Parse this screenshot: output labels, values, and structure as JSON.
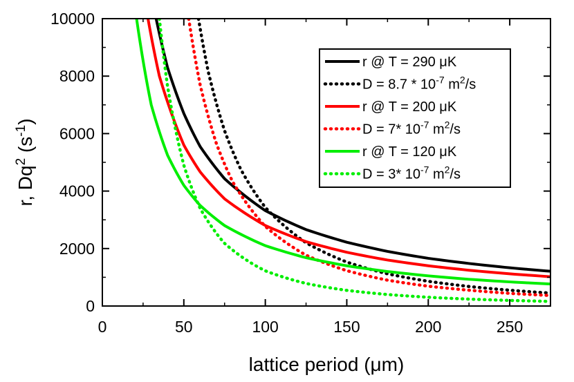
{
  "chart_data": {
    "type": "line",
    "xlabel": "lattice period (μm)",
    "ylabel": "r, Dq² (s⁻¹)",
    "ylabel_parts": {
      "main": "r, Dq",
      "sup1": "2",
      "open": " (s",
      "sup2": "-1",
      "close": ")"
    },
    "xlim": [
      0,
      275
    ],
    "ylim": [
      0,
      10000
    ],
    "xticks": [
      0,
      50,
      100,
      150,
      200,
      250
    ],
    "yticks": [
      0,
      2000,
      4000,
      6000,
      8000,
      10000
    ],
    "xtick_labels": [
      "0",
      "50",
      "100",
      "150",
      "200",
      "250"
    ],
    "ytick_labels": [
      "0",
      "2000",
      "4000",
      "6000",
      "8000",
      "10000"
    ],
    "legend_position": "top-right",
    "grid": false,
    "series": [
      {
        "name": "r @ T = 290 μK",
        "color": "#000000",
        "style": "solid",
        "x": [
          33,
          40,
          50,
          60,
          75,
          100,
          125,
          150,
          175,
          200,
          225,
          250,
          275
        ],
        "y": [
          10000,
          8300,
          6700,
          5550,
          4430,
          3320,
          2660,
          2220,
          1900,
          1660,
          1480,
          1330,
          1210
        ]
      },
      {
        "name": "D = 8.7 * 10⁻⁷ m²/s",
        "legend_parts": {
          "pre": "D = 8.7 * 10",
          "sup": "-7",
          "mid": " m",
          "sup2": "2",
          "post": "/s"
        },
        "color": "#000000",
        "style": "dotted",
        "x": [
          59,
          65,
          75,
          85,
          100,
          125,
          150,
          175,
          200,
          225,
          250,
          275
        ],
        "y": [
          10000,
          8150,
          6100,
          4750,
          3430,
          2200,
          1530,
          1120,
          860,
          680,
          550,
          450
        ]
      },
      {
        "name": "r @ T = 200 μK",
        "color": "#ff0000",
        "style": "solid",
        "x": [
          28,
          35,
          50,
          60,
          75,
          100,
          125,
          150,
          175,
          200,
          225,
          250,
          275
        ],
        "y": [
          10000,
          8000,
          5600,
          4670,
          3730,
          2800,
          2240,
          1870,
          1600,
          1400,
          1245,
          1120,
          1020
        ]
      },
      {
        "name": "D = 7* 10⁻⁷ m²/s",
        "legend_parts": {
          "pre": "D = 7* 10",
          "sup": "-7",
          "mid": " m",
          "sup2": "2",
          "post": "/s"
        },
        "color": "#ff0000",
        "style": "dotted",
        "x": [
          53,
          60,
          70,
          80,
          100,
          125,
          150,
          175,
          200,
          225,
          250,
          275
        ],
        "y": [
          10000,
          7700,
          5650,
          4320,
          2770,
          1770,
          1230,
          900,
          690,
          550,
          440,
          365
        ]
      },
      {
        "name": "r @ T = 120 μK",
        "color": "#00ee00",
        "style": "solid",
        "x": [
          21,
          30,
          40,
          50,
          60,
          75,
          100,
          125,
          150,
          175,
          200,
          225,
          250,
          275
        ],
        "y": [
          10000,
          7000,
          5250,
          4200,
          3500,
          2800,
          2100,
          1680,
          1400,
          1200,
          1050,
          930,
          840,
          765
        ]
      },
      {
        "name": "D = 3* 10⁻⁷ m²/s",
        "legend_parts": {
          "pre": "D = 3* 10",
          "sup": "-7",
          "mid": " m",
          "sup2": "2",
          "post": "/s"
        },
        "color": "#00ee00",
        "style": "dotted",
        "x": [
          35,
          40,
          50,
          60,
          75,
          100,
          125,
          150,
          175,
          200,
          225,
          250,
          275
        ],
        "y": [
          10000,
          7650,
          4900,
          3400,
          2180,
          1225,
          785,
          545,
          400,
          305,
          240,
          195,
          160
        ]
      }
    ]
  }
}
